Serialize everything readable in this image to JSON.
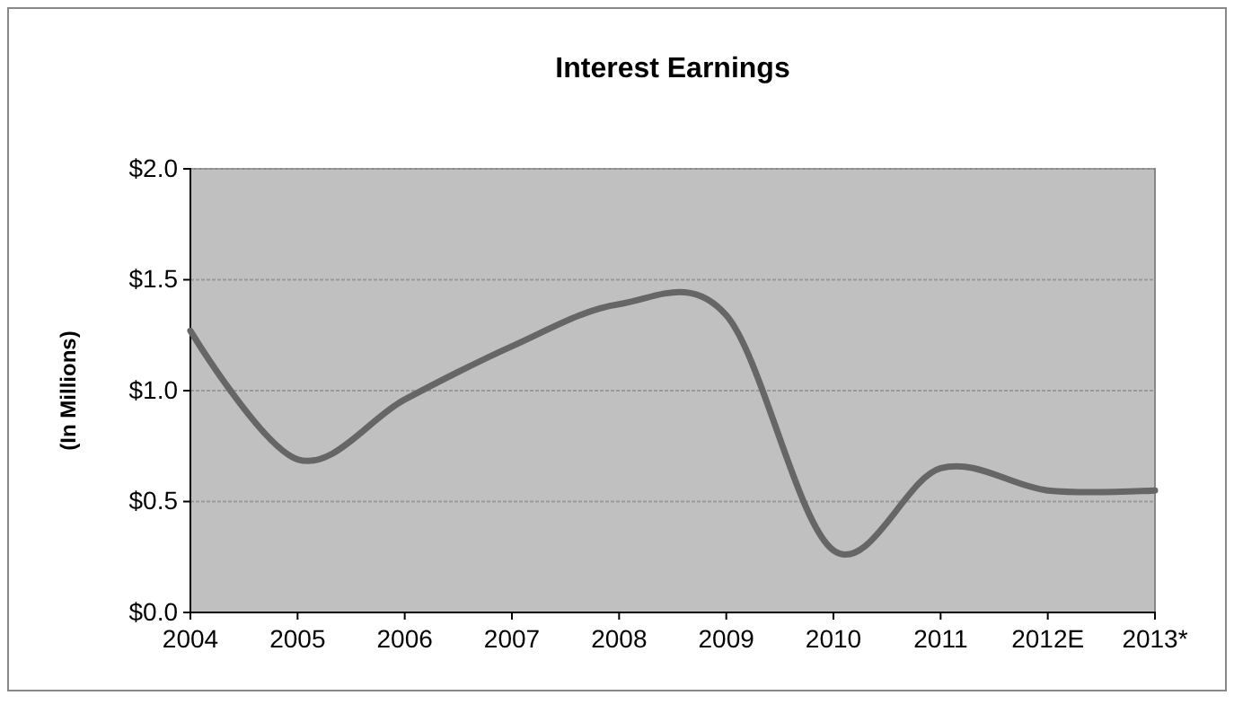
{
  "chart_data": {
    "type": "line",
    "title": "Interest Earnings",
    "ylabel": "(In Millions)",
    "categories": [
      "2004",
      "2005",
      "2006",
      "2007",
      "2008",
      "2009",
      "2010",
      "2011",
      "2012E",
      "2013*"
    ],
    "series": [
      {
        "color": "#666666",
        "values": [
          1.27,
          0.69,
          0.96,
          1.2,
          1.39,
          1.34,
          0.28,
          0.65,
          0.55,
          0.55
        ]
      }
    ],
    "ylim": [
      0,
      2
    ],
    "yticks": [
      {
        "value": 0,
        "label": "$0.0"
      },
      {
        "value": 0.5,
        "label": "$0.5"
      },
      {
        "value": 1,
        "label": "$1.0"
      },
      {
        "value": 1.5,
        "label": "$1.5"
      },
      {
        "value": 2,
        "label": "$2.0"
      }
    ],
    "grid": "y",
    "marker": "none",
    "line_style": "solid"
  }
}
